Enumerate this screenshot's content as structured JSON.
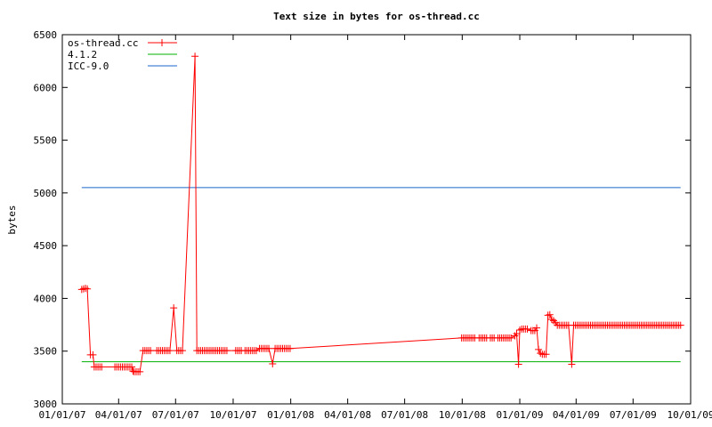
{
  "chart_data": {
    "type": "line",
    "title": "Text size in bytes for os-thread.cc",
    "xlabel": "",
    "ylabel": "bytes",
    "xlim": [
      "01/01/07",
      "10/01/09"
    ],
    "ylim": [
      3000,
      6500
    ],
    "x_ticks": [
      "01/01/07",
      "04/01/07",
      "07/01/07",
      "10/01/07",
      "01/01/08",
      "04/01/08",
      "07/01/08",
      "10/01/08",
      "01/01/09",
      "04/01/09",
      "07/01/09",
      "10/01/09"
    ],
    "y_ticks": [
      3000,
      3500,
      4000,
      4500,
      5000,
      5500,
      6000,
      6500
    ],
    "grid": false,
    "legend_position": "top-left",
    "series": [
      {
        "name": "os-thread.cc",
        "color": "#ff0000",
        "marker": "plus",
        "points": [
          [
            "02/01/07",
            4085
          ],
          [
            "02/04/07",
            4090
          ],
          [
            "02/07/07",
            4095
          ],
          [
            "02/10/07",
            4090
          ],
          [
            "02/15/07",
            3465
          ],
          [
            "02/19/07",
            3465
          ],
          [
            "02/21/07",
            3350
          ],
          [
            "02/24/07",
            3350
          ],
          [
            "02/27/07",
            3350
          ],
          [
            "03/02/07",
            3350
          ],
          [
            "03/05/07",
            3350
          ],
          [
            "03/26/07",
            3350
          ],
          [
            "03/29/07",
            3350
          ],
          [
            "04/01/07",
            3350
          ],
          [
            "04/04/07",
            3350
          ],
          [
            "04/07/07",
            3350
          ],
          [
            "04/10/07",
            3350
          ],
          [
            "04/13/07",
            3350
          ],
          [
            "04/16/07",
            3350
          ],
          [
            "04/19/07",
            3350
          ],
          [
            "04/22/07",
            3350
          ],
          [
            "04/24/07",
            3310
          ],
          [
            "04/26/07",
            3305
          ],
          [
            "04/29/07",
            3305
          ],
          [
            "05/02/07",
            3305
          ],
          [
            "05/05/07",
            3305
          ],
          [
            "05/10/07",
            3505
          ],
          [
            "05/13/07",
            3505
          ],
          [
            "05/16/07",
            3505
          ],
          [
            "05/19/07",
            3505
          ],
          [
            "05/22/07",
            3505
          ],
          [
            "06/01/07",
            3505
          ],
          [
            "06/04/07",
            3505
          ],
          [
            "06/07/07",
            3505
          ],
          [
            "06/10/07",
            3505
          ],
          [
            "06/13/07",
            3505
          ],
          [
            "06/16/07",
            3505
          ],
          [
            "06/19/07",
            3505
          ],
          [
            "06/22/07",
            3505
          ],
          [
            "06/28/07",
            3910
          ],
          [
            "07/03/07",
            3505
          ],
          [
            "07/06/07",
            3505
          ],
          [
            "07/09/07",
            3505
          ],
          [
            "07/12/07",
            3505
          ],
          [
            "08/01/07",
            6295
          ],
          [
            "08/04/07",
            3505
          ],
          [
            "08/07/07",
            3505
          ],
          [
            "08/10/07",
            3505
          ],
          [
            "08/13/07",
            3505
          ],
          [
            "08/16/07",
            3505
          ],
          [
            "08/19/07",
            3505
          ],
          [
            "08/22/07",
            3505
          ],
          [
            "08/25/07",
            3505
          ],
          [
            "08/28/07",
            3505
          ],
          [
            "08/31/07",
            3505
          ],
          [
            "09/03/07",
            3505
          ],
          [
            "09/06/07",
            3505
          ],
          [
            "09/09/07",
            3505
          ],
          [
            "09/12/07",
            3505
          ],
          [
            "09/15/07",
            3505
          ],
          [
            "09/18/07",
            3505
          ],
          [
            "09/21/07",
            3505
          ],
          [
            "10/05/07",
            3505
          ],
          [
            "10/08/07",
            3505
          ],
          [
            "10/11/07",
            3505
          ],
          [
            "10/14/07",
            3505
          ],
          [
            "10/20/07",
            3505
          ],
          [
            "10/23/07",
            3505
          ],
          [
            "10/26/07",
            3505
          ],
          [
            "10/29/07",
            3505
          ],
          [
            "11/01/07",
            3505
          ],
          [
            "11/04/07",
            3505
          ],
          [
            "11/07/07",
            3505
          ],
          [
            "11/12/07",
            3525
          ],
          [
            "11/15/07",
            3525
          ],
          [
            "11/18/07",
            3525
          ],
          [
            "11/21/07",
            3525
          ],
          [
            "11/24/07",
            3525
          ],
          [
            "11/27/07",
            3525
          ],
          [
            "12/03/07",
            3380
          ],
          [
            "12/07/07",
            3525
          ],
          [
            "12/10/07",
            3525
          ],
          [
            "12/13/07",
            3525
          ],
          [
            "12/16/07",
            3525
          ],
          [
            "12/19/07",
            3525
          ],
          [
            "12/22/07",
            3525
          ],
          [
            "12/25/07",
            3525
          ],
          [
            "12/28/07",
            3525
          ],
          [
            "12/31/07",
            3525
          ],
          [
            "09/30/08",
            3625
          ],
          [
            "10/03/08",
            3625
          ],
          [
            "10/06/08",
            3625
          ],
          [
            "10/09/08",
            3625
          ],
          [
            "10/12/08",
            3625
          ],
          [
            "10/15/08",
            3625
          ],
          [
            "10/18/08",
            3625
          ],
          [
            "10/21/08",
            3625
          ],
          [
            "10/28/08",
            3625
          ],
          [
            "10/31/08",
            3625
          ],
          [
            "11/03/08",
            3625
          ],
          [
            "11/06/08",
            3625
          ],
          [
            "11/09/08",
            3625
          ],
          [
            "11/15/08",
            3625
          ],
          [
            "11/18/08",
            3625
          ],
          [
            "11/21/08",
            3625
          ],
          [
            "11/27/08",
            3625
          ],
          [
            "11/30/08",
            3625
          ],
          [
            "12/03/08",
            3625
          ],
          [
            "12/06/08",
            3625
          ],
          [
            "12/09/08",
            3625
          ],
          [
            "12/12/08",
            3625
          ],
          [
            "12/15/08",
            3625
          ],
          [
            "12/18/08",
            3625
          ],
          [
            "12/24/08",
            3645
          ],
          [
            "12/27/08",
            3665
          ],
          [
            "12/30/08",
            3375
          ],
          [
            "01/01/09",
            3700
          ],
          [
            "01/04/09",
            3710
          ],
          [
            "01/07/09",
            3710
          ],
          [
            "01/10/09",
            3710
          ],
          [
            "01/13/09",
            3710
          ],
          [
            "01/19/09",
            3695
          ],
          [
            "01/22/09",
            3695
          ],
          [
            "01/25/09",
            3695
          ],
          [
            "01/28/09",
            3720
          ],
          [
            "01/31/09",
            3515
          ],
          [
            "02/03/09",
            3480
          ],
          [
            "02/06/09",
            3470
          ],
          [
            "02/09/09",
            3470
          ],
          [
            "02/12/09",
            3470
          ],
          [
            "02/15/09",
            3840
          ],
          [
            "02/18/09",
            3845
          ],
          [
            "02/21/09",
            3800
          ],
          [
            "02/24/09",
            3790
          ],
          [
            "02/27/09",
            3770
          ],
          [
            "03/02/09",
            3745
          ],
          [
            "03/05/09",
            3745
          ],
          [
            "03/08/09",
            3745
          ],
          [
            "03/11/09",
            3745
          ],
          [
            "03/14/09",
            3745
          ],
          [
            "03/17/09",
            3745
          ],
          [
            "03/20/09",
            3745
          ],
          [
            "03/25/09",
            3375
          ],
          [
            "03/28/09",
            3745
          ],
          [
            "03/31/09",
            3745
          ],
          [
            "04/03/09",
            3745
          ],
          [
            "04/06/09",
            3745
          ],
          [
            "04/09/09",
            3745
          ],
          [
            "04/12/09",
            3745
          ],
          [
            "04/15/09",
            3745
          ],
          [
            "04/18/09",
            3745
          ],
          [
            "04/21/09",
            3745
          ],
          [
            "04/24/09",
            3745
          ],
          [
            "04/27/09",
            3745
          ],
          [
            "04/30/09",
            3745
          ],
          [
            "05/03/09",
            3745
          ],
          [
            "05/06/09",
            3745
          ],
          [
            "05/09/09",
            3745
          ],
          [
            "05/12/09",
            3745
          ],
          [
            "05/15/09",
            3745
          ],
          [
            "05/18/09",
            3745
          ],
          [
            "05/21/09",
            3745
          ],
          [
            "05/24/09",
            3745
          ],
          [
            "05/27/09",
            3745
          ],
          [
            "05/30/09",
            3745
          ],
          [
            "06/02/09",
            3745
          ],
          [
            "06/05/09",
            3745
          ],
          [
            "06/08/09",
            3745
          ],
          [
            "06/11/09",
            3745
          ],
          [
            "06/14/09",
            3745
          ],
          [
            "06/17/09",
            3745
          ],
          [
            "06/20/09",
            3745
          ],
          [
            "06/23/09",
            3745
          ],
          [
            "06/26/09",
            3745
          ],
          [
            "06/29/09",
            3745
          ],
          [
            "07/02/09",
            3745
          ],
          [
            "07/05/09",
            3745
          ],
          [
            "07/08/09",
            3745
          ],
          [
            "07/11/09",
            3745
          ],
          [
            "07/14/09",
            3745
          ],
          [
            "07/17/09",
            3745
          ],
          [
            "07/20/09",
            3745
          ],
          [
            "07/23/09",
            3745
          ],
          [
            "07/26/09",
            3745
          ],
          [
            "07/29/09",
            3745
          ],
          [
            "08/01/09",
            3745
          ],
          [
            "08/04/09",
            3745
          ],
          [
            "08/07/09",
            3745
          ],
          [
            "08/10/09",
            3745
          ],
          [
            "08/13/09",
            3745
          ],
          [
            "08/16/09",
            3745
          ],
          [
            "08/19/09",
            3745
          ],
          [
            "08/22/09",
            3745
          ],
          [
            "08/25/09",
            3745
          ],
          [
            "08/28/09",
            3745
          ],
          [
            "08/31/09",
            3745
          ],
          [
            "09/03/09",
            3745
          ],
          [
            "09/06/09",
            3745
          ],
          [
            "09/09/09",
            3745
          ],
          [
            "09/12/09",
            3745
          ],
          [
            "09/15/09",
            3745
          ]
        ]
      },
      {
        "name": "4.1.2",
        "color": "#00b000",
        "marker": "none",
        "points": [
          [
            "02/01/07",
            3400
          ],
          [
            "09/15/09",
            3400
          ]
        ]
      },
      {
        "name": "ICC-9.0",
        "color": "#1a66cc",
        "marker": "none",
        "points": [
          [
            "02/01/07",
            5050
          ],
          [
            "09/15/09",
            5050
          ]
        ]
      }
    ]
  }
}
